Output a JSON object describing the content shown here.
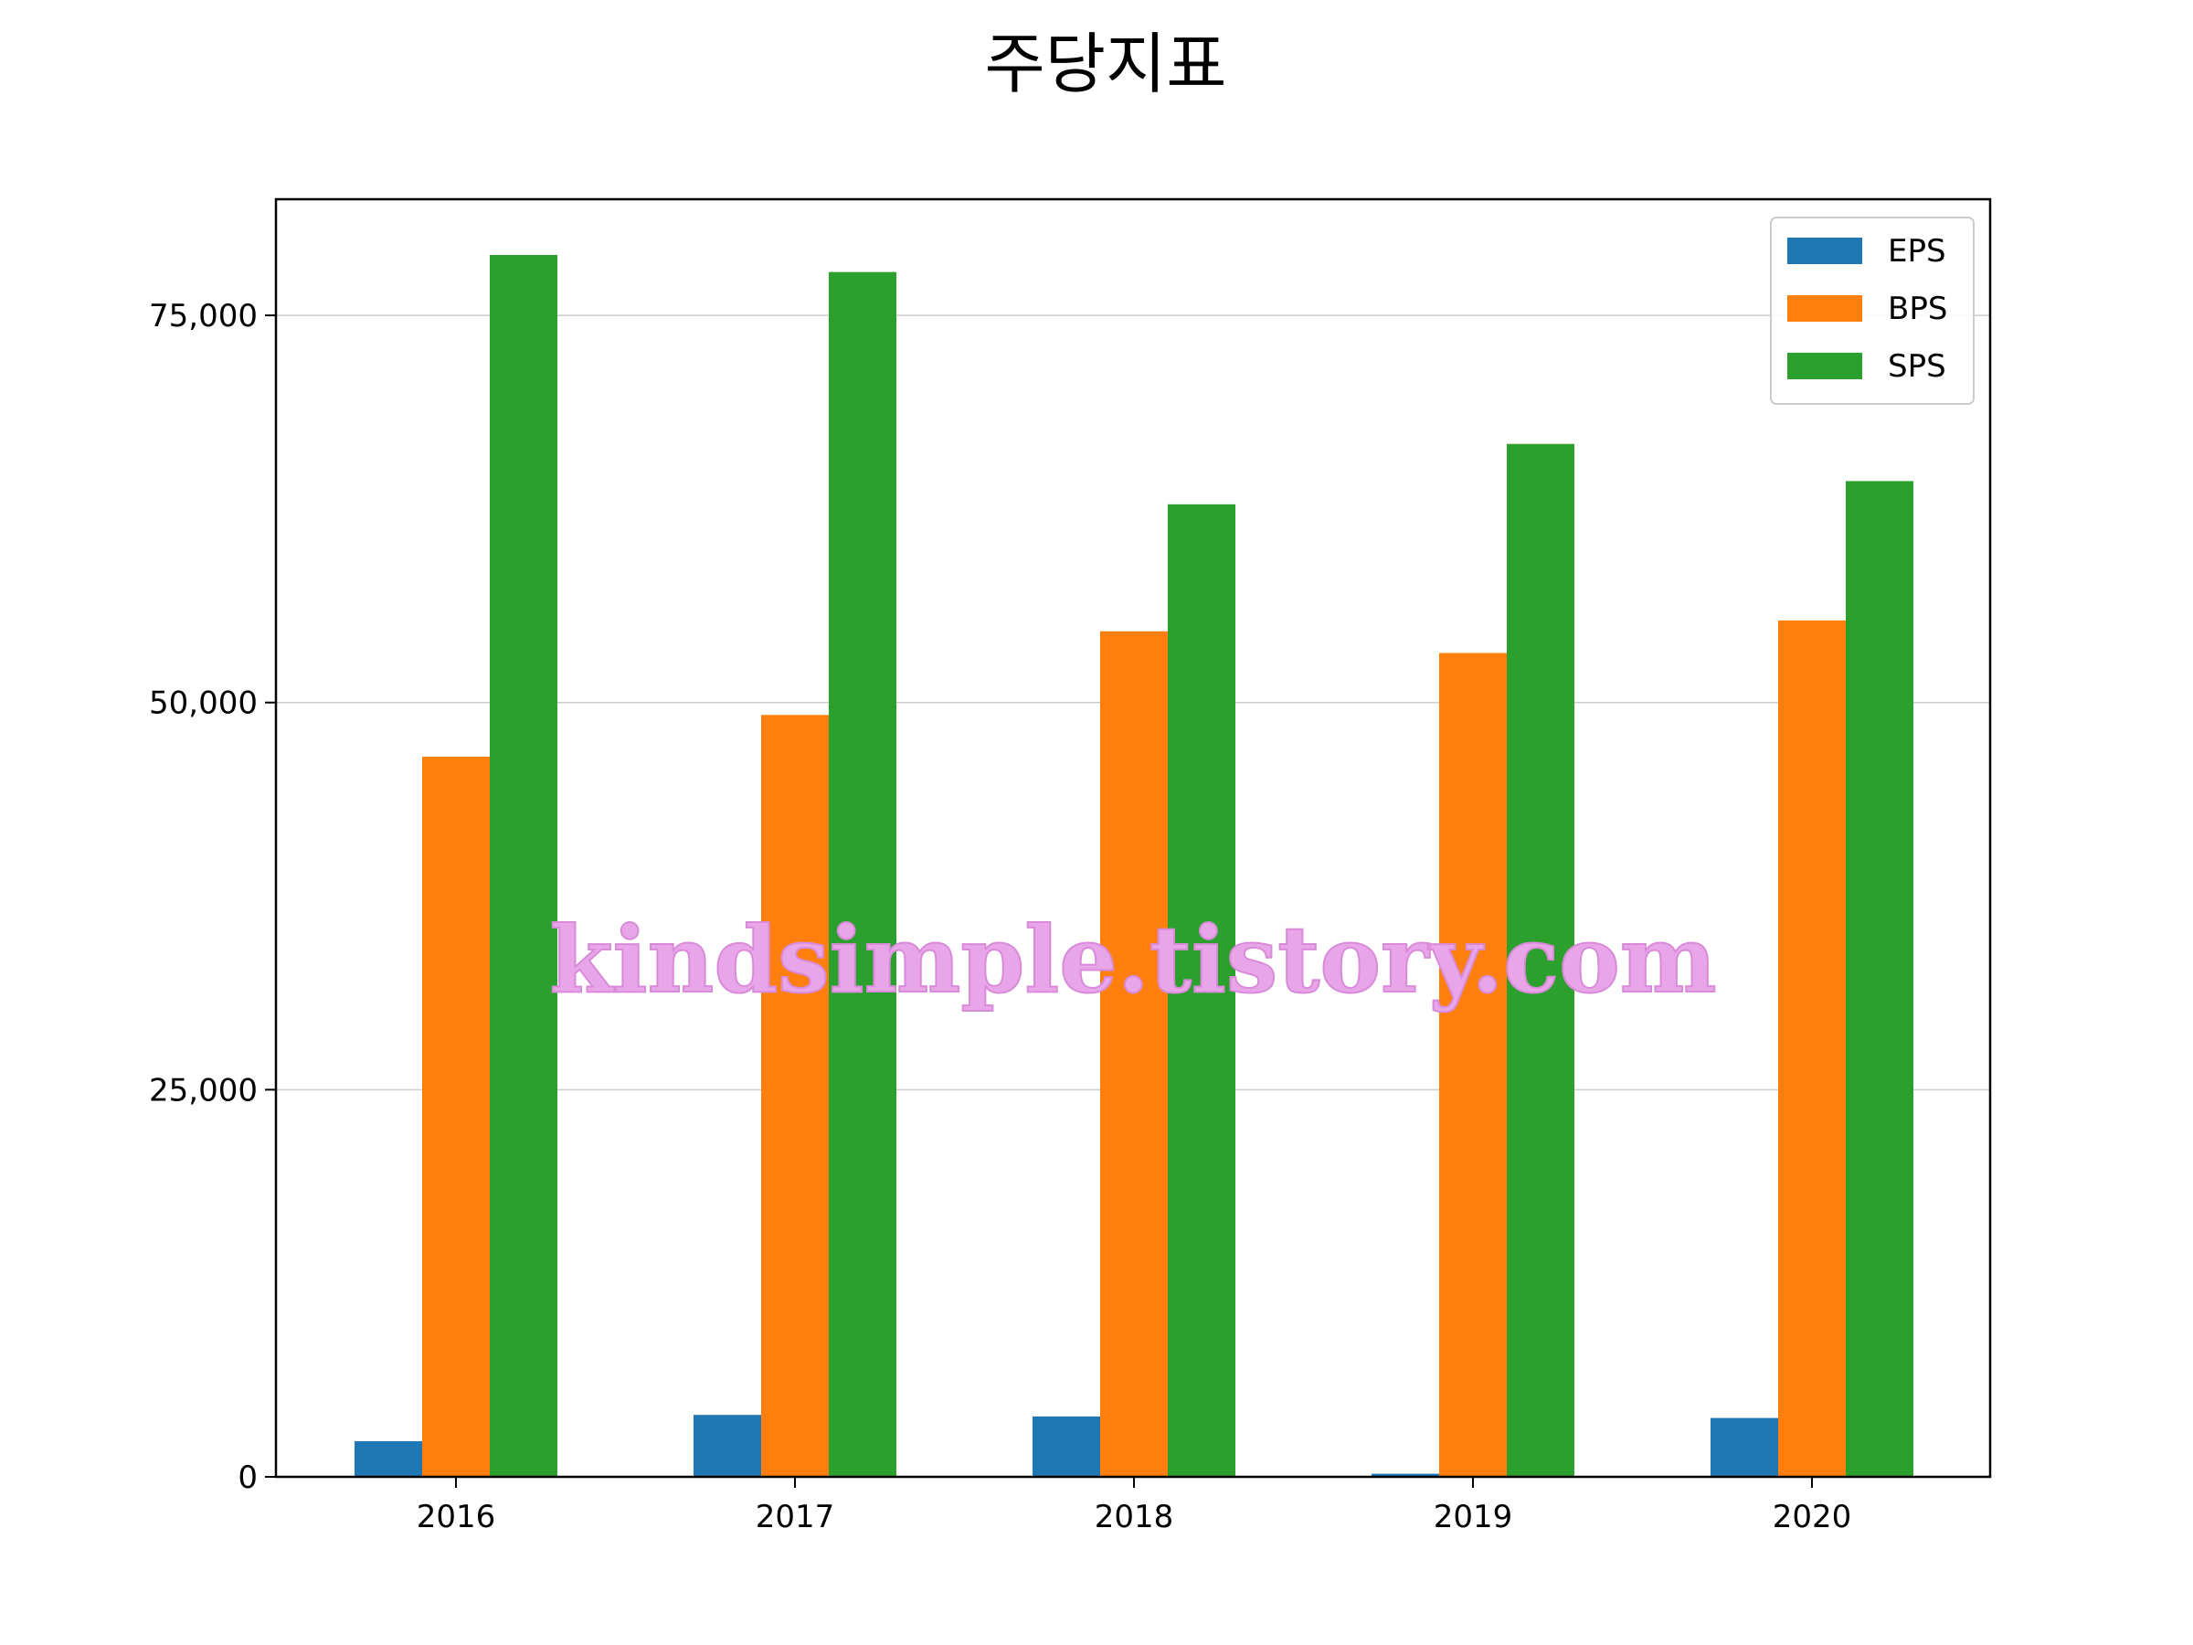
{
  "chart_data": {
    "type": "bar",
    "title": "주당지표",
    "xlabel": "",
    "ylabel": "",
    "categories": [
      "2016",
      "2017",
      "2018",
      "2019",
      "2020"
    ],
    "series": [
      {
        "name": "EPS",
        "color": "#1f77b4",
        "values": [
          2300,
          4000,
          3900,
          200,
          3800
        ]
      },
      {
        "name": "BPS",
        "color": "#ff7f0e",
        "values": [
          46500,
          49200,
          54600,
          53200,
          55300
        ]
      },
      {
        "name": "SPS",
        "color": "#2ca02c",
        "values": [
          78900,
          77800,
          62800,
          66700,
          64300
        ]
      }
    ],
    "ylim": [
      0,
      82500
    ],
    "yticks": [
      0,
      25000,
      50000,
      75000
    ],
    "ytick_labels": [
      "0",
      "25,000",
      "50,000",
      "75,000"
    ],
    "grid": "y-major",
    "legend_position": "top-right"
  },
  "watermark": "kindsimple.tistory.com"
}
